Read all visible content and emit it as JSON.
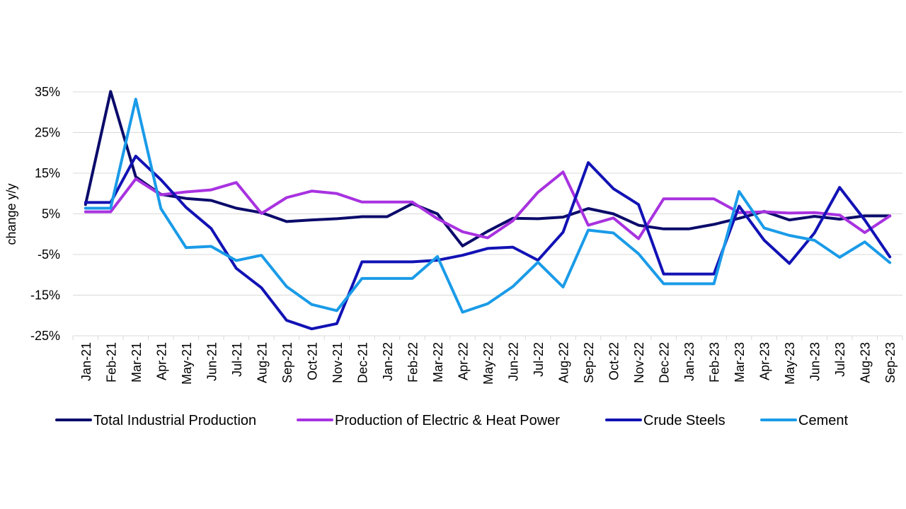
{
  "chart_data": {
    "type": "line",
    "title": "",
    "xlabel": "",
    "ylabel": "change y/y",
    "ylim": [
      -25,
      35
    ],
    "yticks": [
      -25,
      -15,
      -5,
      5,
      15,
      25,
      35
    ],
    "ytick_labels": [
      "-25%",
      "-15%",
      "-5%",
      "5%",
      "15%",
      "25%",
      "35%"
    ],
    "grid": true,
    "legend_position": "bottom",
    "categories": [
      "Jan-21",
      "Feb-21",
      "Mar-21",
      "Apr-21",
      "May-21",
      "Jun-21",
      "Jul-21",
      "Aug-21",
      "Sep-21",
      "Oct-21",
      "Nov-21",
      "Dec-21",
      "Jan-22",
      "Feb-22",
      "Mar-22",
      "Apr-22",
      "May-22",
      "Jun-22",
      "Jul-22",
      "Aug-22",
      "Sep-22",
      "Oct-22",
      "Nov-22",
      "Dec-22",
      "Jan-23",
      "Feb-23",
      "Mar-23",
      "Apr-23",
      "May-23",
      "Jun-23",
      "Jul-23",
      "Aug-23",
      "Sep-23"
    ],
    "series": [
      {
        "name": "Total Industrial Production",
        "color": "#0b0b6b",
        "values": [
          7.3,
          35.1,
          14.1,
          9.8,
          8.8,
          8.3,
          6.4,
          5.3,
          3.1,
          3.5,
          3.8,
          4.3,
          4.3,
          7.5,
          5.0,
          -2.9,
          0.7,
          3.9,
          3.8,
          4.2,
          6.3,
          5.0,
          2.2,
          1.3,
          1.3,
          2.4,
          3.9,
          5.6,
          3.5,
          4.4,
          3.7,
          4.5,
          4.5
        ]
      },
      {
        "name": "Production of Electric & Heat Power",
        "color": "#a832e0",
        "values": [
          5.5,
          5.5,
          13.6,
          9.7,
          10.4,
          10.9,
          12.7,
          5.1,
          9.0,
          10.6,
          10.0,
          7.9,
          7.9,
          7.9,
          3.8,
          0.6,
          -0.9,
          3.3,
          10.3,
          15.3,
          2.2,
          4.0,
          -1.1,
          8.7,
          8.7,
          8.7,
          5.3,
          5.5,
          5.2,
          5.3,
          4.7,
          0.4,
          4.5
        ]
      },
      {
        "name": "Crude Steels",
        "color": "#1212b5",
        "values": [
          7.8,
          7.8,
          19.2,
          13.4,
          6.6,
          1.4,
          -8.4,
          -13.2,
          -21.2,
          -23.3,
          -22.0,
          -6.8,
          -6.8,
          -6.8,
          -6.4,
          -5.2,
          -3.5,
          -3.2,
          -6.4,
          0.5,
          17.6,
          11.2,
          7.3,
          -9.8,
          -9.8,
          -9.8,
          6.9,
          -1.5,
          -7.2,
          0.3,
          11.5,
          3.5,
          -5.6
        ]
      },
      {
        "name": "Cement",
        "color": "#1a9be8",
        "values": [
          6.4,
          6.4,
          33.2,
          6.3,
          -3.3,
          -3.0,
          -6.5,
          -5.2,
          -12.9,
          -17.3,
          -18.8,
          -10.9,
          -10.9,
          -10.9,
          -5.5,
          -19.2,
          -17.1,
          -12.9,
          -6.9,
          -13.0,
          1.0,
          0.3,
          -4.8,
          -12.2,
          -12.2,
          -12.2,
          10.5,
          1.5,
          -0.3,
          -1.5,
          -5.7,
          -1.9,
          -7.0
        ]
      }
    ]
  }
}
